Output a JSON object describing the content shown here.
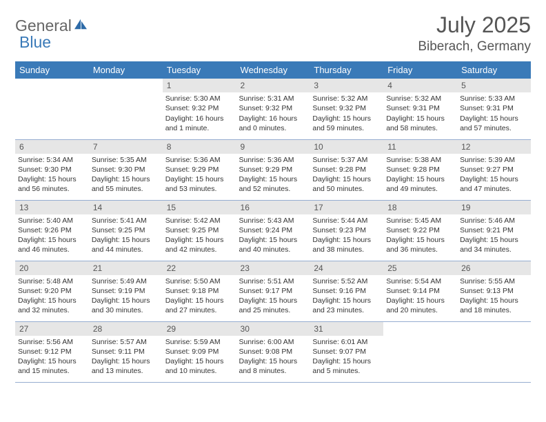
{
  "brand": {
    "part1": "General",
    "part2": "Blue"
  },
  "title": {
    "monthYear": "July 2025",
    "location": "Biberach, Germany"
  },
  "colors": {
    "headerBg": "#3a7ab8",
    "headerText": "#ffffff",
    "dayNumBg": "#e6e6e6",
    "dayNumText": "#555555",
    "bodyText": "#333333",
    "borderColor": "#95add0",
    "pageBg": "#ffffff",
    "logoGray": "#666666",
    "logoBlue": "#3a7ab8",
    "titleColor": "#555555"
  },
  "weekdays": [
    "Sunday",
    "Monday",
    "Tuesday",
    "Wednesday",
    "Thursday",
    "Friday",
    "Saturday"
  ],
  "weeks": [
    [
      null,
      null,
      {
        "n": "1",
        "sr": "5:30 AM",
        "ss": "9:32 PM",
        "dl": "16 hours and 1 minute."
      },
      {
        "n": "2",
        "sr": "5:31 AM",
        "ss": "9:32 PM",
        "dl": "16 hours and 0 minutes."
      },
      {
        "n": "3",
        "sr": "5:32 AM",
        "ss": "9:32 PM",
        "dl": "15 hours and 59 minutes."
      },
      {
        "n": "4",
        "sr": "5:32 AM",
        "ss": "9:31 PM",
        "dl": "15 hours and 58 minutes."
      },
      {
        "n": "5",
        "sr": "5:33 AM",
        "ss": "9:31 PM",
        "dl": "15 hours and 57 minutes."
      }
    ],
    [
      {
        "n": "6",
        "sr": "5:34 AM",
        "ss": "9:30 PM",
        "dl": "15 hours and 56 minutes."
      },
      {
        "n": "7",
        "sr": "5:35 AM",
        "ss": "9:30 PM",
        "dl": "15 hours and 55 minutes."
      },
      {
        "n": "8",
        "sr": "5:36 AM",
        "ss": "9:29 PM",
        "dl": "15 hours and 53 minutes."
      },
      {
        "n": "9",
        "sr": "5:36 AM",
        "ss": "9:29 PM",
        "dl": "15 hours and 52 minutes."
      },
      {
        "n": "10",
        "sr": "5:37 AM",
        "ss": "9:28 PM",
        "dl": "15 hours and 50 minutes."
      },
      {
        "n": "11",
        "sr": "5:38 AM",
        "ss": "9:28 PM",
        "dl": "15 hours and 49 minutes."
      },
      {
        "n": "12",
        "sr": "5:39 AM",
        "ss": "9:27 PM",
        "dl": "15 hours and 47 minutes."
      }
    ],
    [
      {
        "n": "13",
        "sr": "5:40 AM",
        "ss": "9:26 PM",
        "dl": "15 hours and 46 minutes."
      },
      {
        "n": "14",
        "sr": "5:41 AM",
        "ss": "9:25 PM",
        "dl": "15 hours and 44 minutes."
      },
      {
        "n": "15",
        "sr": "5:42 AM",
        "ss": "9:25 PM",
        "dl": "15 hours and 42 minutes."
      },
      {
        "n": "16",
        "sr": "5:43 AM",
        "ss": "9:24 PM",
        "dl": "15 hours and 40 minutes."
      },
      {
        "n": "17",
        "sr": "5:44 AM",
        "ss": "9:23 PM",
        "dl": "15 hours and 38 minutes."
      },
      {
        "n": "18",
        "sr": "5:45 AM",
        "ss": "9:22 PM",
        "dl": "15 hours and 36 minutes."
      },
      {
        "n": "19",
        "sr": "5:46 AM",
        "ss": "9:21 PM",
        "dl": "15 hours and 34 minutes."
      }
    ],
    [
      {
        "n": "20",
        "sr": "5:48 AM",
        "ss": "9:20 PM",
        "dl": "15 hours and 32 minutes."
      },
      {
        "n": "21",
        "sr": "5:49 AM",
        "ss": "9:19 PM",
        "dl": "15 hours and 30 minutes."
      },
      {
        "n": "22",
        "sr": "5:50 AM",
        "ss": "9:18 PM",
        "dl": "15 hours and 27 minutes."
      },
      {
        "n": "23",
        "sr": "5:51 AM",
        "ss": "9:17 PM",
        "dl": "15 hours and 25 minutes."
      },
      {
        "n": "24",
        "sr": "5:52 AM",
        "ss": "9:16 PM",
        "dl": "15 hours and 23 minutes."
      },
      {
        "n": "25",
        "sr": "5:54 AM",
        "ss": "9:14 PM",
        "dl": "15 hours and 20 minutes."
      },
      {
        "n": "26",
        "sr": "5:55 AM",
        "ss": "9:13 PM",
        "dl": "15 hours and 18 minutes."
      }
    ],
    [
      {
        "n": "27",
        "sr": "5:56 AM",
        "ss": "9:12 PM",
        "dl": "15 hours and 15 minutes."
      },
      {
        "n": "28",
        "sr": "5:57 AM",
        "ss": "9:11 PM",
        "dl": "15 hours and 13 minutes."
      },
      {
        "n": "29",
        "sr": "5:59 AM",
        "ss": "9:09 PM",
        "dl": "15 hours and 10 minutes."
      },
      {
        "n": "30",
        "sr": "6:00 AM",
        "ss": "9:08 PM",
        "dl": "15 hours and 8 minutes."
      },
      {
        "n": "31",
        "sr": "6:01 AM",
        "ss": "9:07 PM",
        "dl": "15 hours and 5 minutes."
      },
      null,
      null
    ]
  ],
  "labels": {
    "sunrise": "Sunrise:",
    "sunset": "Sunset:",
    "daylight": "Daylight:"
  }
}
